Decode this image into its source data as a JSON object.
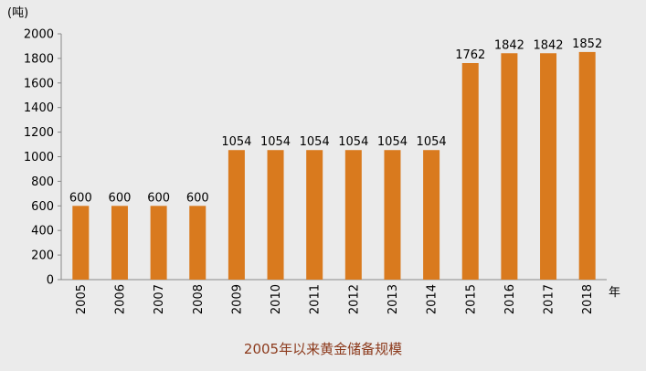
{
  "chart_data": {
    "type": "bar",
    "title": "2005年以来黄金储备规模",
    "ylabel": "(吨)",
    "xlabel": "年",
    "categories": [
      "2005",
      "2006",
      "2007",
      "2008",
      "2009",
      "2010",
      "2011",
      "2012",
      "2013",
      "2014",
      "2015",
      "2016",
      "2017",
      "2018"
    ],
    "values": [
      600,
      600,
      600,
      600,
      1054,
      1054,
      1054,
      1054,
      1054,
      1054,
      1762,
      1842,
      1842,
      1852
    ],
    "ylim": [
      0,
      2000
    ],
    "yticks": [
      0,
      200,
      400,
      600,
      800,
      1000,
      1200,
      1400,
      1600,
      1800,
      2000
    ],
    "bar_color": "#d97a1e",
    "grid": false,
    "legend": "none"
  }
}
